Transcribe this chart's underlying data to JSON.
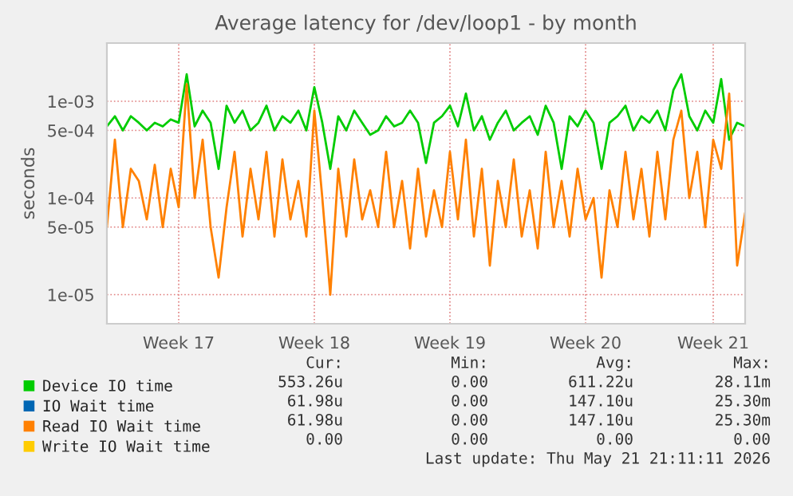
{
  "chart_data": {
    "type": "line",
    "title": "Average latency for /dev/loop1 - by month",
    "ylabel": "seconds",
    "categories": [
      null,
      null,
      null,
      null,
      null,
      null,
      null,
      null,
      null,
      "Week 17",
      null,
      null,
      null,
      null,
      null,
      null,
      null,
      null,
      null,
      null,
      null,
      null,
      null,
      null,
      null,
      null,
      "Week 18",
      null,
      null,
      null,
      null,
      null,
      null,
      null,
      null,
      null,
      null,
      null,
      null,
      null,
      null,
      null,
      null,
      "Week 19",
      null,
      null,
      null,
      null,
      null,
      null,
      null,
      null,
      null,
      null,
      null,
      null,
      null,
      null,
      null,
      null,
      "Week 20",
      null,
      null,
      null,
      null,
      null,
      null,
      null,
      null,
      null,
      null,
      null,
      null,
      null,
      null,
      null,
      "Week 21",
      null,
      null,
      null,
      null
    ],
    "series": [
      {
        "name": "Device IO time",
        "color": "#00cc00",
        "values": [
          0.00055,
          0.0007,
          0.0005,
          0.0007,
          0.0006,
          0.0005,
          0.0006,
          0.00055,
          0.00065,
          0.0006,
          0.0019,
          0.00055,
          0.0008,
          0.0006,
          0.0002,
          0.0009,
          0.0006,
          0.0008,
          0.0005,
          0.0006,
          0.0009,
          0.0005,
          0.0007,
          0.0006,
          0.0008,
          0.0005,
          0.0014,
          0.0006,
          0.0002,
          0.0007,
          0.0005,
          0.0008,
          0.0006,
          0.00045,
          0.0005,
          0.0007,
          0.00055,
          0.0006,
          0.0008,
          0.0006,
          0.00023,
          0.0006,
          0.0007,
          0.0009,
          0.00055,
          0.0012,
          0.0005,
          0.0007,
          0.0004,
          0.0006,
          0.0008,
          0.0005,
          0.0006,
          0.0007,
          0.00045,
          0.0009,
          0.0006,
          0.0002,
          0.0007,
          0.00055,
          0.0008,
          0.0006,
          0.0002,
          0.0006,
          0.0007,
          0.0009,
          0.0005,
          0.0007,
          0.0006,
          0.0008,
          0.0005,
          0.0013,
          0.0019,
          0.0007,
          0.0005,
          0.0008,
          0.0006,
          0.0017,
          0.0004,
          0.0006,
          0.00055
        ]
      },
      {
        "name": "IO Wait time",
        "color": "#0066b3",
        "values": [
          null,
          null,
          null,
          null,
          null,
          null,
          null,
          null,
          null,
          null,
          null,
          null,
          null,
          null,
          null,
          null,
          null,
          null,
          null,
          null,
          null,
          null,
          null,
          null,
          null,
          null,
          null,
          null,
          null,
          null,
          null,
          null,
          null,
          null,
          null,
          null,
          null,
          null,
          null,
          null,
          null,
          null,
          null,
          null,
          null,
          null,
          null,
          null,
          null,
          null,
          null,
          null,
          null,
          null,
          null,
          null,
          null,
          null,
          null,
          null,
          null,
          null,
          null,
          null,
          null,
          null,
          null,
          null,
          null,
          null,
          null,
          null,
          null,
          null,
          null,
          null,
          null,
          null,
          null,
          null,
          null
        ]
      },
      {
        "name": "Read IO Wait time",
        "color": "#ff8000",
        "values": [
          5e-05,
          0.0004,
          5e-05,
          0.0002,
          0.00015,
          6e-05,
          0.00022,
          5e-05,
          0.0002,
          8e-05,
          0.0015,
          0.0001,
          0.0004,
          5e-05,
          1.5e-05,
          8e-05,
          0.0003,
          4e-05,
          0.0002,
          6e-05,
          0.0003,
          4e-05,
          0.00025,
          6e-05,
          0.00015,
          4e-05,
          0.0008,
          0.0001,
          1e-05,
          0.0002,
          4e-05,
          0.00025,
          6e-05,
          0.00012,
          5e-05,
          0.0003,
          5e-05,
          0.00015,
          3e-05,
          0.0002,
          4e-05,
          0.00012,
          5e-05,
          0.0003,
          6e-05,
          0.0004,
          4e-05,
          0.0002,
          2e-05,
          0.00015,
          5e-05,
          0.00025,
          4e-05,
          0.00012,
          3e-05,
          0.0003,
          5e-05,
          0.00015,
          4e-05,
          0.0002,
          6e-05,
          0.0001,
          1.5e-05,
          0.00012,
          5e-05,
          0.0003,
          6e-05,
          0.0002,
          4e-05,
          0.0003,
          6e-05,
          0.0004,
          0.0008,
          0.0001,
          0.0003,
          5e-05,
          0.0004,
          0.0002,
          0.0012,
          2e-05,
          7e-05
        ]
      },
      {
        "name": "Write IO Wait time",
        "color": "#ffcc00",
        "values": [
          null,
          null,
          null,
          null,
          null,
          null,
          null,
          null,
          null,
          null,
          null,
          null,
          null,
          null,
          null,
          null,
          null,
          null,
          null,
          null,
          null,
          null,
          null,
          null,
          null,
          null,
          null,
          null,
          null,
          null,
          null,
          null,
          null,
          null,
          null,
          null,
          null,
          null,
          null,
          null,
          null,
          null,
          null,
          null,
          null,
          null,
          null,
          null,
          null,
          null,
          null,
          null,
          null,
          null,
          null,
          null,
          null,
          null,
          null,
          null,
          null,
          null,
          null,
          null,
          null,
          null,
          null,
          null,
          null,
          null,
          null,
          null,
          null,
          null,
          null,
          null,
          null,
          null,
          null,
          null,
          null
        ]
      }
    ],
    "log": "y",
    "ylim": [
      5e-06,
      0.004
    ],
    "yticks": [
      {
        "value": 1e-05,
        "label": "1e-05"
      },
      {
        "value": 5e-05,
        "label": "5e-05"
      },
      {
        "value": 0.0001,
        "label": "1e-04"
      },
      {
        "value": 0.0005,
        "label": "5e-04"
      },
      {
        "value": 0.001,
        "label": "1e-03"
      }
    ],
    "grid": true,
    "legend": "bottom left",
    "annotations": [
      "Cur:",
      "Min:",
      "Avg:",
      "Max:",
      "553.26u",
      "0.00",
      "611.22u",
      "28.11m",
      "61.98u",
      "0.00",
      "147.10u",
      "25.30m",
      "61.98u",
      "0.00",
      "147.10u",
      "25.30m",
      "0.00",
      "0.00",
      "0.00",
      "0.00",
      "Last update: Thu May 21 21:11:11 2026"
    ]
  }
}
